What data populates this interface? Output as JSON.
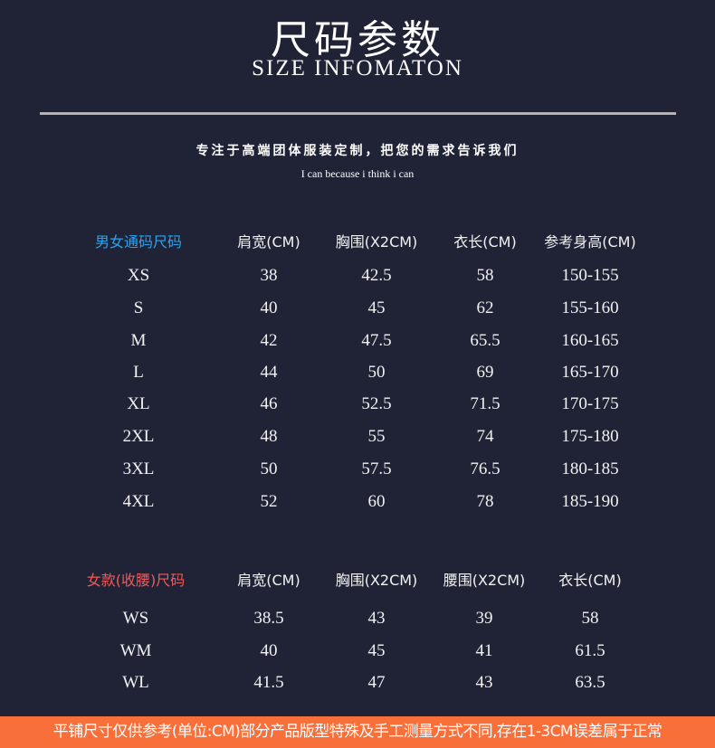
{
  "header": {
    "title": "尺码参数",
    "subtitle": "SIZE INFOMATON",
    "slogan": "专注于高端团体服装定制，把您的需求告诉我们",
    "motto": "I can because i think i can"
  },
  "colors": {
    "background": "#1f2335",
    "unisex_heading": "#2aa3f0",
    "women_heading": "#f05a5a",
    "footer": "#f96f3a"
  },
  "unisex_table": {
    "headers": [
      "男女通码尺码",
      "肩宽(CM)",
      "胸围(X2CM)",
      "衣长(CM)",
      "参考身高(CM)"
    ],
    "rows": [
      [
        "XS",
        "38",
        "42.5",
        "58",
        "150-155"
      ],
      [
        "S",
        "40",
        "45",
        "62",
        "155-160"
      ],
      [
        "M",
        "42",
        "47.5",
        "65.5",
        "160-165"
      ],
      [
        "L",
        "44",
        "50",
        "69",
        "165-170"
      ],
      [
        "XL",
        "46",
        "52.5",
        "71.5",
        "170-175"
      ],
      [
        "2XL",
        "48",
        "55",
        "74",
        "175-180"
      ],
      [
        "3XL",
        "50",
        "57.5",
        "76.5",
        "180-185"
      ],
      [
        "4XL",
        "52",
        "60",
        "78",
        "185-190"
      ]
    ]
  },
  "women_table": {
    "headers": [
      "女款(收腰)尺码",
      "肩宽(CM)",
      "胸围(X2CM)",
      "腰围(X2CM)",
      "衣长(CM)"
    ],
    "rows": [
      [
        "WS",
        "38.5",
        "43",
        "39",
        "58"
      ],
      [
        "WM",
        "40",
        "45",
        "41",
        "61.5"
      ],
      [
        "WL",
        "41.5",
        "47",
        "43",
        "63.5"
      ]
    ]
  },
  "footer": {
    "note": "平铺尺寸仅供参考(单位:CM)部分产品版型特殊及手工测量方式不同,存在1-3CM误差属于正常"
  }
}
